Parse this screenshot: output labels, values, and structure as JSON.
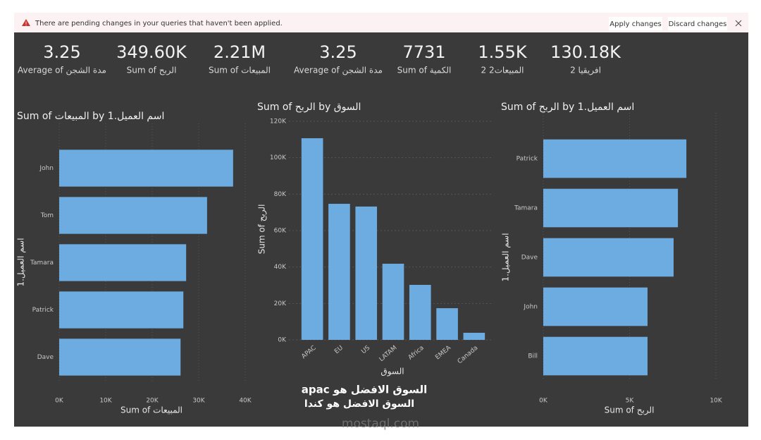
{
  "banner": {
    "message": "There are pending changes in your queries that haven't been applied.",
    "apply": "Apply changes",
    "discard": "Discard changes"
  },
  "cards": [
    {
      "value": "3.25",
      "label": "Average of مدة الشجن"
    },
    {
      "value": "349.60K",
      "label": "Sum of الربح"
    },
    {
      "value": "2.21M",
      "label": "Sum of المبيعات"
    },
    {
      "value": "3.25",
      "label": "Average of مدة الشجن"
    },
    {
      "value": "7731",
      "label": "Sum of الكمية"
    },
    {
      "value": "1.55K",
      "label": "المبيعات2 2"
    },
    {
      "value": "130.18K",
      "label": "افريقيا 2"
    }
  ],
  "chart_data": [
    {
      "type": "bar",
      "orientation": "horizontal",
      "title": "Sum of المبيعات by اسم العميل.1",
      "x_label": "Sum of المبيعات",
      "y_label": "اسم العميل.1",
      "categories": [
        "John",
        "Tom",
        "Tamara",
        "Patrick",
        "Dave"
      ],
      "values": [
        37400,
        31800,
        27300,
        26700,
        26100
      ],
      "color": "#6cace0",
      "xlim": [
        0,
        40000
      ],
      "xticks": [
        {
          "value": 0,
          "label": "0K"
        },
        {
          "value": 10000,
          "label": "10K"
        },
        {
          "value": 20000,
          "label": "20K"
        },
        {
          "value": 30000,
          "label": "30K"
        },
        {
          "value": 40000,
          "label": "40K"
        }
      ],
      "grid": true
    },
    {
      "type": "bar",
      "orientation": "vertical",
      "title": "Sum of الربح by السوق",
      "x_label": "السوق",
      "y_label": "Sum of الربح",
      "categories": [
        "APAC",
        "EU",
        "US",
        "LATAM",
        "Africa",
        "EMEA",
        "Canada"
      ],
      "values": [
        110700,
        74700,
        73200,
        41800,
        30200,
        17400,
        3900
      ],
      "color": "#6cace0",
      "ylim": [
        0,
        120000
      ],
      "yticks": [
        {
          "value": 0,
          "label": "0K"
        },
        {
          "value": 20000,
          "label": "20K"
        },
        {
          "value": 40000,
          "label": "40K"
        },
        {
          "value": 60000,
          "label": "60K"
        },
        {
          "value": 80000,
          "label": "80K"
        },
        {
          "value": 100000,
          "label": "100K"
        },
        {
          "value": 120000,
          "label": "120K"
        }
      ],
      "grid": true
    },
    {
      "type": "bar",
      "orientation": "horizontal",
      "title": "Sum of الربح by اسم العميل.1",
      "x_label": "Sum of الربح",
      "y_label": "اسم العميل.1",
      "categories": [
        "Patrick",
        "Tamara",
        "Dave",
        "John",
        "Bill"
      ],
      "values": [
        8290,
        7800,
        7550,
        6040,
        6040
      ],
      "color": "#6cace0",
      "xlim": [
        0,
        10000
      ],
      "xticks": [
        {
          "value": 0,
          "label": "0K"
        },
        {
          "value": 5000,
          "label": "5K"
        },
        {
          "value": 10000,
          "label": "10K"
        }
      ],
      "grid": true
    }
  ],
  "annotation": [
    "apac السوق الافضل هو",
    "السوق الافضل هو كندا"
  ],
  "watermark": "mostaql.com"
}
